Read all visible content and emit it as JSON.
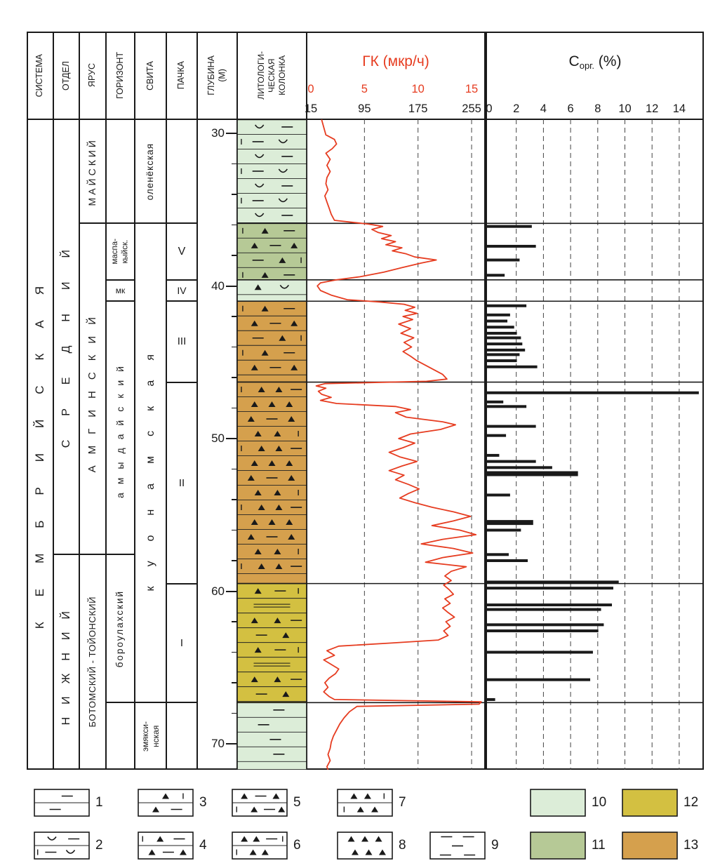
{
  "header": {
    "cols": [
      "СИСТЕМА",
      "ОТДЕЛ",
      "ЯРУС",
      "ГОРИЗОНТ",
      "СВИТА",
      "ПАЧКА",
      "ГЛУБИНА\n(М)",
      "ЛИТОЛОГИ-\nЧЕСКАЯ\nКОЛОНКА"
    ],
    "gk_title": "ГК (мкр/ч)",
    "corg_c": "С",
    "corg_sub": "орг.",
    "corg_unit": " (%)"
  },
  "scales": {
    "gk_red": [
      0,
      5,
      10,
      15
    ],
    "gk_black": [
      15,
      95,
      175,
      255
    ],
    "corg": [
      0,
      2,
      4,
      6,
      8,
      10,
      12,
      14
    ],
    "depth_labels": [
      30,
      40,
      50,
      60,
      70
    ],
    "depth_minor_step": 2
  },
  "colors": {
    "lightgreen": "#dcedd8",
    "darkgreen": "#b6c996",
    "orange": "#d5a04d",
    "yellow": "#d3c041",
    "red": "#e63c20",
    "ink": "#1a1a1a"
  },
  "strat": {
    "sistema": [
      {
        "label": "КЕМБРИЙСКАЯ",
        "from": 29.1,
        "to": 71.7
      }
    ],
    "otdel": [
      {
        "label": "СРЕДНИЙ",
        "from": 29.1,
        "to": 57.6
      },
      {
        "label": "НИЖНИЙ",
        "from": 57.6,
        "to": 71.7
      }
    ],
    "yarus": [
      {
        "label": "МАЙСКИЙ",
        "from": 29.1,
        "to": 35.9
      },
      {
        "label": "АМГИНСКИЙ",
        "from": 35.9,
        "to": 57.6
      },
      {
        "label": "БОТОМСКИЙ - ТОЙОНСКИЙ",
        "from": 57.6,
        "to": 71.7
      }
    ],
    "gorizont": [
      {
        "label": "",
        "from": 29.1,
        "to": 35.9
      },
      {
        "label": "маспа-\nкыйск.",
        "from": 35.9,
        "to": 39.6
      },
      {
        "label": "мк",
        "from": 39.6,
        "to": 41.0
      },
      {
        "label": "амыдайский",
        "from": 41.0,
        "to": 57.6
      },
      {
        "label": "бороулахский",
        "from": 57.6,
        "to": 67.3
      },
      {
        "label": "",
        "from": 67.3,
        "to": 71.7
      }
    ],
    "svita": [
      {
        "label": "оленёкская",
        "from": 29.1,
        "to": 35.9
      },
      {
        "label": "куонамская",
        "from": 35.9,
        "to": 67.3
      },
      {
        "label": "эмякси-\nнская",
        "from": 67.3,
        "to": 71.7
      }
    ],
    "pachka": [
      {
        "label": "",
        "from": 29.1,
        "to": 35.9
      },
      {
        "label": "V",
        "from": 35.9,
        "to": 39.6
      },
      {
        "label": "IV",
        "from": 39.6,
        "to": 41.0
      },
      {
        "label": "III",
        "from": 41.0,
        "to": 46.3
      },
      {
        "label": "II",
        "from": 46.3,
        "to": 59.5
      },
      {
        "label": "I",
        "from": 59.5,
        "to": 67.3
      },
      {
        "label": "",
        "from": 67.3,
        "to": 71.7
      }
    ]
  },
  "litho_sections": [
    {
      "from": 29.1,
      "to": 35.9,
      "color": "lightgreen",
      "pattern": "limestone-curve"
    },
    {
      "from": 35.9,
      "to": 39.6,
      "color": "darkgreen",
      "pattern": "tri-dash"
    },
    {
      "from": 39.6,
      "to": 41.0,
      "color": "lightgreen",
      "pattern": "limestone-tri-curve"
    },
    {
      "from": 41.0,
      "to": 46.3,
      "color": "orange",
      "pattern": "tri-dash"
    },
    {
      "from": 46.3,
      "to": 59.5,
      "color": "orange",
      "pattern": "tri-dense"
    },
    {
      "from": 59.5,
      "to": 67.3,
      "color": "yellow",
      "pattern": "tri-stripe"
    },
    {
      "from": 67.3,
      "to": 71.7,
      "color": "lightgreen",
      "pattern": "limestone-dash"
    }
  ],
  "panel_boundaries": [
    35.9,
    39.6,
    41.0,
    46.3,
    59.5,
    67.3
  ],
  "chart_data": [
    {
      "type": "line",
      "title": "ГК (мкр/ч)",
      "x_axis_red_mkr_h": [
        0,
        5,
        10,
        15
      ],
      "x_axis_black": [
        15,
        95,
        175,
        255
      ],
      "depth_axis_m": [
        30,
        70
      ],
      "points": [
        [
          29.1,
          1.0
        ],
        [
          29.6,
          1.2
        ],
        [
          30.1,
          1.4
        ],
        [
          30.4,
          2.2
        ],
        [
          30.7,
          2.4
        ],
        [
          31.0,
          2.0
        ],
        [
          31.3,
          1.4
        ],
        [
          31.7,
          1.8
        ],
        [
          32.1,
          1.5
        ],
        [
          32.5,
          1.8
        ],
        [
          32.9,
          1.5
        ],
        [
          33.3,
          1.4
        ],
        [
          33.7,
          1.6
        ],
        [
          34.1,
          1.3
        ],
        [
          34.5,
          1.5
        ],
        [
          34.9,
          1.7
        ],
        [
          35.3,
          1.9
        ],
        [
          35.7,
          2.2
        ],
        [
          35.95,
          5.4
        ],
        [
          36.1,
          6.7
        ],
        [
          36.3,
          5.7
        ],
        [
          36.5,
          6.3
        ],
        [
          36.7,
          7.5
        ],
        [
          36.9,
          6.6
        ],
        [
          37.1,
          7.9
        ],
        [
          37.3,
          7.0
        ],
        [
          37.5,
          8.5
        ],
        [
          37.7,
          7.6
        ],
        [
          37.9,
          8.9
        ],
        [
          38.1,
          9.7
        ],
        [
          38.3,
          11.7
        ],
        [
          38.5,
          10.3
        ],
        [
          38.8,
          8.5
        ],
        [
          39.1,
          6.8
        ],
        [
          39.4,
          4.6
        ],
        [
          39.6,
          2.4
        ],
        [
          39.8,
          0.9
        ],
        [
          40.0,
          0.6
        ],
        [
          40.3,
          0.9
        ],
        [
          40.6,
          1.9
        ],
        [
          40.9,
          3.4
        ],
        [
          41.05,
          6.4
        ],
        [
          41.2,
          8.7
        ],
        [
          41.4,
          9.7
        ],
        [
          41.6,
          8.8
        ],
        [
          41.8,
          9.9
        ],
        [
          42.0,
          8.6
        ],
        [
          42.2,
          9.5
        ],
        [
          42.5,
          8.2
        ],
        [
          42.8,
          9.3
        ],
        [
          43.1,
          8.4
        ],
        [
          43.4,
          9.6
        ],
        [
          43.7,
          8.7
        ],
        [
          44.0,
          9.4
        ],
        [
          44.3,
          8.6
        ],
        [
          44.6,
          9.3
        ],
        [
          44.9,
          9.9
        ],
        [
          45.2,
          10.7
        ],
        [
          45.5,
          11.5
        ],
        [
          45.8,
          12.3
        ],
        [
          46.1,
          12.7
        ],
        [
          46.25,
          10.8
        ],
        [
          46.4,
          1.3
        ],
        [
          46.55,
          0.5
        ],
        [
          46.7,
          1.4
        ],
        [
          46.9,
          0.7
        ],
        [
          47.1,
          1.0
        ],
        [
          47.3,
          1.9
        ],
        [
          47.5,
          0.9
        ],
        [
          47.7,
          2.4
        ],
        [
          47.9,
          7.9
        ],
        [
          48.1,
          9.3
        ],
        [
          48.3,
          7.9
        ],
        [
          48.6,
          8.9
        ],
        [
          48.9,
          12.3
        ],
        [
          49.1,
          13.5
        ],
        [
          49.4,
          12.1
        ],
        [
          49.7,
          9.3
        ],
        [
          50.0,
          8.2
        ],
        [
          50.3,
          9.7
        ],
        [
          50.6,
          8.6
        ],
        [
          50.9,
          7.3
        ],
        [
          51.2,
          8.3
        ],
        [
          51.5,
          9.9
        ],
        [
          51.8,
          8.5
        ],
        [
          52.1,
          7.3
        ],
        [
          52.4,
          8.7
        ],
        [
          52.7,
          7.9
        ],
        [
          53.0,
          9.1
        ],
        [
          53.3,
          10.1
        ],
        [
          53.6,
          9.1
        ],
        [
          53.9,
          8.3
        ],
        [
          54.2,
          9.7
        ],
        [
          54.5,
          11.3
        ],
        [
          54.8,
          13.3
        ],
        [
          55.1,
          14.9
        ],
        [
          55.4,
          13.3
        ],
        [
          55.7,
          11.3
        ],
        [
          56.0,
          13.9
        ],
        [
          56.3,
          15.4
        ],
        [
          56.6,
          12.3
        ],
        [
          56.9,
          10.3
        ],
        [
          57.2,
          13.3
        ],
        [
          57.5,
          15.1
        ],
        [
          57.8,
          12.3
        ],
        [
          58.1,
          10.7
        ],
        [
          58.4,
          14.5
        ],
        [
          58.7,
          13.1
        ],
        [
          59.0,
          12.5
        ],
        [
          59.3,
          13.1
        ],
        [
          59.6,
          12.4
        ],
        [
          59.9,
          12.9
        ],
        [
          60.2,
          13.3
        ],
        [
          60.5,
          12.5
        ],
        [
          60.8,
          13.0
        ],
        [
          61.1,
          12.3
        ],
        [
          61.4,
          12.8
        ],
        [
          61.7,
          13.4
        ],
        [
          62.0,
          12.6
        ],
        [
          62.3,
          13.0
        ],
        [
          62.6,
          12.4
        ],
        [
          62.9,
          12.8
        ],
        [
          63.2,
          11.9
        ],
        [
          63.4,
          7.5
        ],
        [
          63.6,
          2.6
        ],
        [
          63.9,
          1.5
        ],
        [
          64.2,
          2.2
        ],
        [
          64.5,
          1.2
        ],
        [
          64.8,
          1.9
        ],
        [
          65.1,
          2.6
        ],
        [
          65.4,
          2.3
        ],
        [
          65.7,
          1.7
        ],
        [
          66.0,
          1.3
        ],
        [
          66.3,
          1.6
        ],
        [
          66.6,
          1.2
        ],
        [
          66.9,
          1.7
        ],
        [
          67.1,
          2.2
        ],
        [
          67.25,
          15.9
        ],
        [
          67.4,
          15.7
        ],
        [
          67.55,
          4.3
        ],
        [
          67.9,
          3.6
        ],
        [
          68.3,
          3.1
        ],
        [
          68.7,
          2.7
        ],
        [
          69.1,
          2.4
        ],
        [
          69.5,
          2.1
        ],
        [
          69.9,
          1.9
        ],
        [
          70.3,
          1.8
        ],
        [
          70.7,
          1.6
        ],
        [
          71.1,
          1.8
        ],
        [
          71.5,
          1.5
        ],
        [
          71.7,
          1.6
        ]
      ]
    },
    {
      "type": "bar",
      "title": "Сорг. (%)",
      "x_axis_percent": [
        0,
        14
      ],
      "bars": [
        [
          36.1,
          3.3
        ],
        [
          37.4,
          3.6
        ],
        [
          38.3,
          2.4
        ],
        [
          39.3,
          1.3
        ],
        [
          41.3,
          2.9
        ],
        [
          41.9,
          1.7
        ],
        [
          42.3,
          1.5
        ],
        [
          42.7,
          2.0
        ],
        [
          43.1,
          2.2
        ],
        [
          43.4,
          2.5
        ],
        [
          43.8,
          2.6
        ],
        [
          44.2,
          2.8
        ],
        [
          44.5,
          2.4
        ],
        [
          44.9,
          2.2
        ],
        [
          45.3,
          3.7
        ],
        [
          47.0,
          15.6
        ],
        [
          47.6,
          1.2
        ],
        [
          47.9,
          2.9
        ],
        [
          49.2,
          3.6
        ],
        [
          49.8,
          1.4
        ],
        [
          51.1,
          0.9
        ],
        [
          51.5,
          3.6
        ],
        [
          51.9,
          4.8
        ],
        [
          52.3,
          6.7,
          2
        ],
        [
          53.7,
          1.7
        ],
        [
          55.5,
          3.4,
          2
        ],
        [
          56.0,
          2.5
        ],
        [
          57.6,
          1.6
        ],
        [
          58.0,
          3.0
        ],
        [
          59.4,
          9.7
        ],
        [
          59.8,
          9.3
        ],
        [
          60.9,
          9.2
        ],
        [
          61.2,
          8.4
        ],
        [
          62.2,
          8.6
        ],
        [
          62.6,
          8.2
        ],
        [
          64.0,
          7.8
        ],
        [
          65.8,
          7.6
        ],
        [
          67.1,
          0.6
        ]
      ]
    }
  ],
  "legend": {
    "items": [
      {
        "num": "1",
        "kind": "pattern",
        "pattern": "limestone-dash"
      },
      {
        "num": "2",
        "kind": "pattern",
        "pattern": "limestone-curve"
      },
      {
        "num": "3",
        "kind": "pattern",
        "pattern": "limestone-tri"
      },
      {
        "num": "4",
        "kind": "pattern",
        "pattern": "tri-dash"
      },
      {
        "num": "5",
        "kind": "pattern",
        "pattern": "tri-dash-mixed"
      },
      {
        "num": "6",
        "kind": "pattern",
        "pattern": "tri2-dash"
      },
      {
        "num": "7",
        "kind": "pattern",
        "pattern": "tri2-brick"
      },
      {
        "num": "8",
        "kind": "pattern",
        "pattern": "tri3"
      },
      {
        "num": "9",
        "kind": "pattern",
        "pattern": "dash"
      },
      {
        "num": "10",
        "kind": "swatch",
        "color": "lightgreen"
      },
      {
        "num": "11",
        "kind": "swatch",
        "color": "darkgreen"
      },
      {
        "num": "12",
        "kind": "swatch",
        "color": "yellow"
      },
      {
        "num": "13",
        "kind": "swatch",
        "color": "orange"
      }
    ]
  }
}
